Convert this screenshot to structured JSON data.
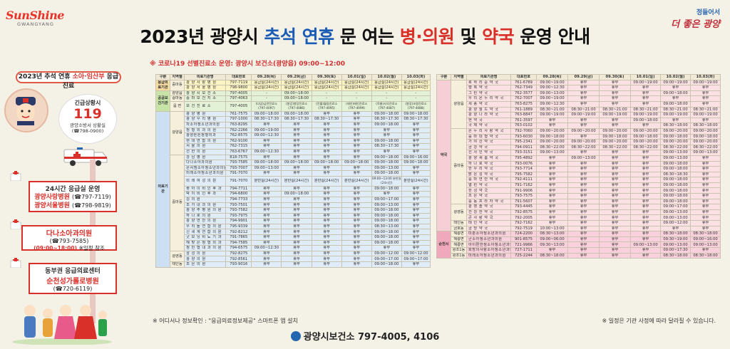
{
  "logo_left": {
    "line1": "SunShine",
    "line2": "GWANGYANG"
  },
  "logo_right": {
    "line1": "정들어서",
    "line2": "더 좋은 광양"
  },
  "title": {
    "part1": "2023년 광양시 ",
    "chuseok": "추석",
    "space1": " ",
    "yeonhyu": "연휴",
    "part2": " 문 여는 ",
    "hospital": "병·의원",
    "part3": " 및 ",
    "pharmacy": "약국",
    "part4": " 운영 안내"
  },
  "notice": "※ 코로나19 선별진료소 운영: 광양시 보건소(광양읍) 09:00~12:00",
  "left_panel": {
    "header_a": "2023년 추석 연휴 ",
    "header_b": "소아·임산부",
    "header_c": " 응급진료",
    "bubble": {
      "l1": "긴급상황시",
      "l2": "119",
      "l3": "광양소방서 상황실",
      "l4": "(☎798-0900)"
    },
    "box1": {
      "title": "24시간 응급실 운영",
      "h1": "광양사랑병원",
      "p1": "(☎797-7119)",
      "h2": "광양서울병원",
      "p2": "(☎798-9819)"
    },
    "box2": {
      "h": "다나소아과의원",
      "p": "(☎793-7585)",
      "hours": "(09:00~18:00)",
      "note": "※일정 참조"
    },
    "box3": {
      "t": "동부권 응급의료센터",
      "h": "순천성가롤로병원",
      "p": "(☎720-6119)"
    }
  },
  "table_hosp": {
    "headers": [
      "구분",
      "지역별",
      "의료기관명",
      "대표번호",
      "09.28(목)",
      "09.29(금)",
      "09.30(토)",
      "10.01(일)",
      "10.02(월)",
      "10.03(화)"
    ],
    "rows": [
      {
        "c": "응급의료기관",
        "r": "중마동",
        "n": "광 양 사 랑 병 원",
        "t": "797-7119",
        "d": [
          "응급실(24시간)",
          "응급실(24시간)",
          "응급실(24시간)",
          "응급실(24시간)",
          "응급실(24시간)",
          "응급실(24시간)"
        ],
        "cls": "y-row"
      },
      {
        "c": "",
        "r": "",
        "n": "광 양 서 울 병 원",
        "t": "798-9800",
        "d": [
          "응급실(24시간)",
          "응급실(24시간)",
          "응급실(24시간)",
          "응급실(24시간)",
          "응급실(24시간)",
          "응급실(24시간)"
        ],
        "cls": "y-row"
      },
      {
        "c": "공공보건기관",
        "r": "광양읍",
        "n": "광 양 시 보 건 소",
        "t": "797-4005",
        "d": [
          "-",
          "09:00~18:00",
          "-",
          "-",
          "-",
          "-"
        ],
        "cls": "g-row"
      },
      {
        "c": "",
        "r": "중마동",
        "n": "중 마 보 건 지 소",
        "t": "797-4063",
        "d": [
          "-",
          "09:00~18:00",
          "-",
          "-",
          "-",
          "-"
        ],
        "cls": "g-row"
      },
      {
        "c": "",
        "r": "읍 면",
        "n": "보 건 진 료 소",
        "t": "797-4005",
        "d": [
          "(다압)금전진료소 (797-4097)",
          "(봉강)봉당진료소 (797-4086)",
          "(진월)월길진료소 (797-4095)",
          "(태인)태인진료소 (797-4099)",
          "(옥룡)사곡진료소 (797-4087)",
          "(봉강)조령진료소 (797-4088)"
        ],
        "cls": "g-row"
      },
      {
        "c": "의료기관",
        "r": "광양읍",
        "n": "광 양 병 원",
        "t": "761-7575",
        "d": [
          "09:00~18:00",
          "09:00~18:00",
          "휴무",
          "휴무",
          "09:00~18:00",
          "09:00~18:00"
        ],
        "cls": "b-row"
      },
      {
        "c": "",
        "r": "",
        "n": "광 양 우 리 병 원",
        "t": "797-1000",
        "d": [
          "08:30~17:30",
          "08:30~17:30",
          "08:30~17:30",
          "휴무",
          "08:30~17:30",
          "08:30~17:30"
        ],
        "cls": "b-row"
      },
      {
        "c": "",
        "r": "",
        "n": "차소아청소년과의원",
        "t": "763-8295",
        "d": [
          "휴무",
          "휴무",
          "휴무",
          "휴무",
          "09:00~18:00",
          "휴무"
        ],
        "cls": "b-row"
      },
      {
        "c": "",
        "r": "",
        "n": "정 형 외 과 의 원",
        "t": "762-2266",
        "d": [
          "09:00~19:00",
          "휴무",
          "휴무",
          "휴무",
          "휴무",
          "휴무"
        ],
        "cls": "b-row"
      },
      {
        "c": "",
        "r": "",
        "n": "광양튼튼정형외과",
        "t": "762-8575",
        "d": [
          "09:00~12:30",
          "휴무",
          "휴무",
          "휴무",
          "휴무",
          "휴무"
        ],
        "cls": "b-row"
      },
      {
        "c": "",
        "r": "",
        "n": "현 대 연 합 의 원",
        "t": "762-9100",
        "d": [
          "휴무",
          "휴무",
          "휴무",
          "휴무",
          "09:00~18:00",
          "휴무"
        ],
        "cls": "b-row"
      },
      {
        "c": "",
        "r": "",
        "n": "서 울 의 원",
        "t": "762-7315",
        "d": [
          "휴무",
          "휴무",
          "휴무",
          "휴무",
          "08:30~17:30",
          "휴무"
        ],
        "cls": "b-row"
      },
      {
        "c": "",
        "r": "",
        "n": "선 한 의 원",
        "t": "763-6767",
        "d": [
          "09:00~12:30",
          "휴무",
          "휴무",
          "휴무",
          "휴무",
          "휴무"
        ],
        "cls": "b-row"
      },
      {
        "c": "",
        "r": "중마동",
        "n": "강 남 병 원",
        "t": "818-7575",
        "d": [
          "휴무",
          "휴무",
          "휴무",
          "휴무",
          "09:00~18:00",
          "09:00~16:00"
        ],
        "cls": "b-row"
      },
      {
        "c": "",
        "r": "",
        "n": "다나소아과의원",
        "t": "793-7585",
        "d": [
          "09:00~18:00",
          "09:00~18:00",
          "09:00~18:00",
          "09:00~18:00",
          "09:00~18:00",
          "09:00~18:00"
        ],
        "cls": "b-row"
      },
      {
        "c": "",
        "r": "",
        "n": "은서엠소아청소년과의원",
        "t": "793-7007",
        "d": [
          "09:00~13:00",
          "휴무",
          "휴무",
          "휴무",
          "09:00~13:00",
          "휴무"
        ],
        "cls": "b-row"
      },
      {
        "c": "",
        "r": "",
        "n": "미래소아청소년과의원",
        "t": "791-7070",
        "d": [
          "휴무",
          "휴무",
          "휴무",
          "휴무",
          "09:00~18:00",
          "휴무"
        ],
        "cls": "b-row"
      },
      {
        "c": "",
        "r": "",
        "n": "미 래 여 성 의 원",
        "t": "791-7070",
        "d": [
          "분만실(24시간)",
          "분만실(24시간)",
          "분만실(24시간)",
          "분만실(24시간)",
          "09:00~13:00 분만실(24시간)",
          "분만실(24시간)"
        ],
        "cls": "b-row"
      },
      {
        "c": "",
        "r": "",
        "n": "좋 아 이 비 인 후 과",
        "t": "794-7711",
        "d": [
          "휴무",
          "휴무",
          "휴무",
          "휴무",
          "09:00~18:00",
          "휴무"
        ],
        "cls": "b-row"
      },
      {
        "c": "",
        "r": "",
        "n": "박 이 비 인 후 과",
        "t": "794-6800",
        "d": [
          "휴무",
          "09:00~18:00",
          "휴무",
          "휴무",
          "휴무",
          "휴무"
        ],
        "cls": "b-row"
      },
      {
        "c": "",
        "r": "",
        "n": "김 의 원",
        "t": "794-7733",
        "d": [
          "휴무",
          "휴무",
          "휴무",
          "휴무",
          "09:00~17:00",
          "휴무"
        ],
        "cls": "b-row"
      },
      {
        "c": "",
        "r": "",
        "n": "조 가 내 과 의 원",
        "t": "793-7501",
        "d": [
          "휴무",
          "휴무",
          "휴무",
          "휴무",
          "09:00~13:00",
          "휴무"
        ],
        "cls": "b-row"
      },
      {
        "c": "",
        "r": "",
        "n": "광 양 주 병 원 의 원",
        "t": "793-7582",
        "d": [
          "휴무",
          "휴무",
          "휴무",
          "휴무",
          "09:00~18:00",
          "휴무"
        ],
        "cls": "b-row"
      },
      {
        "c": "",
        "r": "",
        "n": "하 나 로 의 원",
        "t": "793-7975",
        "d": [
          "휴무",
          "휴무",
          "휴무",
          "휴무",
          "09:00~18:00",
          "휴무"
        ],
        "cls": "b-row"
      },
      {
        "c": "",
        "r": "",
        "n": "광 양 연 안 의 원",
        "t": "794-9901",
        "d": [
          "휴무",
          "휴무",
          "휴무",
          "휴무",
          "09:00~18:00",
          "휴무"
        ],
        "cls": "b-row"
      },
      {
        "c": "",
        "r": "",
        "n": "우 리 들 연 합 의 원",
        "t": "795-9339",
        "d": [
          "휴무",
          "휴무",
          "휴무",
          "휴무",
          "08:30~13:00",
          "휴무"
        ],
        "cls": "b-row"
      },
      {
        "c": "",
        "r": "",
        "n": "신 세 계 연 합 의 원",
        "t": "792-8212",
        "d": [
          "휴무",
          "휴무",
          "휴무",
          "휴무",
          "09:00~18:00",
          "휴무"
        ],
        "cls": "b-row"
      },
      {
        "c": "",
        "r": "",
        "n": "굿 모 닝 비 뇨 기 과",
        "t": "791-7865",
        "d": [
          "휴무",
          "휴무",
          "휴무",
          "휴무",
          "09:00~18:00",
          "휴무"
        ],
        "cls": "b-row"
      },
      {
        "c": "",
        "r": "",
        "n": "해 맞 은 정 형 외 과",
        "t": "794-7585",
        "d": [
          "휴무",
          "휴무",
          "휴무",
          "휴무",
          "09:00~18:00",
          "휴무"
        ],
        "cls": "b-row"
      },
      {
        "c": "",
        "r": "",
        "n": "정 민 형 내 과 의 원",
        "t": "794-6575",
        "d": [
          "09:00~12:30",
          "휴무",
          "휴무",
          "휴무",
          "휴무",
          "휴무"
        ],
        "cls": "b-row"
      },
      {
        "c": "",
        "r": "광영동",
        "n": "삼 성 의 원",
        "t": "792-8275",
        "d": [
          "휴무",
          "휴무",
          "휴무",
          "휴무",
          "09:00~12:00",
          "09:00~12:00"
        ],
        "cls": "b-row"
      },
      {
        "c": "",
        "r": "",
        "n": "광 양 의 원",
        "t": "792-8561",
        "d": [
          "휴무",
          "휴무",
          "휴무",
          "휴무",
          "09:00~17:00",
          "09:00~17:00"
        ],
        "cls": "b-row"
      },
      {
        "c": "",
        "r": "태인동",
        "n": "조 은 의 원",
        "t": "793-9016",
        "d": [
          "휴무",
          "휴무",
          "휴무",
          "휴무",
          "09:00~18:00",
          "휴무"
        ],
        "cls": "b-row"
      }
    ]
  },
  "table_pharm": {
    "headers": [
      "구분",
      "지역별",
      "의료기관명",
      "대표번호",
      "09.28(목)",
      "09.29(금)",
      "09.30(토)",
      "10.01(일)",
      "10.02(월)",
      "10.03(화)"
    ],
    "rows": [
      {
        "c": "약국",
        "r": "광양읍",
        "n": "로 하 리 쥰 약 국",
        "t": "761-6789",
        "d": [
          "09:00~19:00",
          "휴무",
          "휴무",
          "09:00~19:00",
          "09:00~19:00",
          "09:00~19:00"
        ],
        "cls": "p-row"
      },
      {
        "c": "",
        "r": "",
        "n": "행 복 약 국",
        "t": "762-7349",
        "d": [
          "09:00~12:30",
          "휴무",
          "휴무",
          "휴무",
          "휴무",
          "휴무"
        ],
        "cls": "p-row"
      },
      {
        "c": "",
        "r": "",
        "n": "그 린 약 국",
        "t": "762-3577",
        "d": [
          "09:00~13:00",
          "휴무",
          "휴무",
          "휴무",
          "09:00~18:00",
          "휴무"
        ],
        "cls": "p-row"
      },
      {
        "c": "",
        "r": "",
        "n": "우 리 온 누 리 약 국",
        "t": "762-7007",
        "d": [
          "09:00~19:00",
          "휴무",
          "휴무",
          "휴무",
          "휴무",
          "휴무"
        ],
        "cls": "p-row"
      },
      {
        "c": "",
        "r": "",
        "n": "세 종 약 국",
        "t": "763-8275",
        "d": [
          "09:00~12:30",
          "휴무",
          "휴무",
          "휴무",
          "09:00~18:00",
          "휴무"
        ],
        "cls": "p-row"
      },
      {
        "c": "",
        "r": "",
        "n": "광 양 월 드 약 국",
        "t": "761-1889",
        "d": [
          "08:30~21:00",
          "08:30~21:00",
          "08:30~21:00",
          "08:30~21:00",
          "08:30~21:00",
          "08:30~21:00"
        ],
        "cls": "p-row"
      },
      {
        "c": "",
        "r": "",
        "n": "광 양 나 라 약 국",
        "t": "763-8847",
        "d": [
          "09:00~19:00",
          "09:00~19:00",
          "09:00~19:00",
          "09:00~19:00",
          "09:00~19:00",
          "09:00~19:00"
        ],
        "cls": "p-row"
      },
      {
        "c": "",
        "r": "",
        "n": "현 약 국",
        "t": "761-3597",
        "d": [
          "휴무",
          "휴무",
          "휴무",
          "09:00~18:00",
          "휴무",
          "휴무"
        ],
        "cls": "p-row"
      },
      {
        "c": "",
        "r": "",
        "n": "국 제 약 국",
        "t": "763-0102",
        "d": [
          "휴무",
          "휴무",
          "휴무",
          "휴무",
          "08:30~18:00",
          "08:30~18:00"
        ],
        "cls": "p-row"
      },
      {
        "c": "",
        "r": "중마동",
        "n": "온 누 리 사 랑 약 국",
        "t": "792-7060",
        "d": [
          "09:00~20:00",
          "09:00~20:00",
          "09:00~20:00",
          "09:00~20:00",
          "09:00~20:00",
          "09:00~20:00"
        ],
        "cls": "p-row"
      },
      {
        "c": "",
        "r": "",
        "n": "중 마 대 형 약 국",
        "t": "793-6030",
        "d": [
          "09:00~18:00",
          "휴무",
          "09:00~18:00",
          "09:00~18:00",
          "09:00~18:00",
          "09:00~18:00"
        ],
        "cls": "p-row"
      },
      {
        "c": "",
        "r": "",
        "n": "가 야 산 약 국",
        "t": "795-2341",
        "d": [
          "09:00~20:00",
          "09:00~20:00",
          "09:00~20:00",
          "09:00~20:00",
          "09:00~20:00",
          "09:00~20:00"
        ],
        "cls": "p-row"
      },
      {
        "c": "",
        "r": "",
        "n": "금 강 약 국",
        "t": "794-0911",
        "d": [
          "08:30~22:00",
          "08:30~22:00",
          "08:30~22:00",
          "08:30~22:00",
          "08:30~22:00",
          "08:30~22:00"
        ],
        "cls": "p-row"
      },
      {
        "c": "",
        "r": "",
        "n": "선 사 인 약 국",
        "t": "793-3151",
        "d": [
          "09:00~13:00",
          "휴무",
          "휴무",
          "휴무",
          "09:00~13:00",
          "09:00~13:00"
        ],
        "cls": "p-row"
      },
      {
        "c": "",
        "r": "",
        "n": "광 양 새 롬 약 국",
        "t": "795-4892",
        "d": [
          "휴무",
          "09:00~13:00",
          "휴무",
          "휴무",
          "09:00~13:00",
          "휴무"
        ],
        "cls": "p-row"
      },
      {
        "c": "",
        "r": "",
        "n": "하 나 로 약 국",
        "t": "793-0076",
        "d": [
          "휴무",
          "휴무",
          "휴무",
          "휴무",
          "09:00~18:00",
          "휴무"
        ],
        "cls": "p-row"
      },
      {
        "c": "",
        "r": "",
        "n": "한 우 리 약 국",
        "t": "793-7714",
        "d": [
          "휴무",
          "휴무",
          "휴무",
          "휴무",
          "09:00~18:00",
          "휴무"
        ],
        "cls": "p-row"
      },
      {
        "c": "",
        "r": "",
        "n": "밝 은 성 약 국",
        "t": "795-7582",
        "d": [
          "휴무",
          "휴무",
          "휴무",
          "휴무",
          "08:30~18:30",
          "휴무"
        ],
        "cls": "p-row"
      },
      {
        "c": "",
        "r": "",
        "n": "중 마 연 안 약 국",
        "t": "792-4111",
        "d": [
          "휴무",
          "휴무",
          "휴무",
          "휴무",
          "09:00~18:00",
          "휴무"
        ],
        "cls": "p-row"
      },
      {
        "c": "",
        "r": "",
        "n": "열 린 약 국",
        "t": "791-7162",
        "d": [
          "휴무",
          "휴무",
          "휴무",
          "휴무",
          "09:00~18:00",
          "휴무"
        ],
        "cls": "p-row"
      },
      {
        "c": "",
        "r": "",
        "n": "한 성 약 국",
        "t": "791-9906",
        "d": [
          "휴무",
          "휴무",
          "휴무",
          "휴무",
          "09:00~18:00",
          "휴무"
        ],
        "cls": "p-row"
      },
      {
        "c": "",
        "r": "",
        "n": "조 은 약 국",
        "t": "793-7575",
        "d": [
          "휴무",
          "휴무",
          "휴무",
          "휴무",
          "09:00~18:00",
          "휴무"
        ],
        "cls": "p-row"
      },
      {
        "c": "",
        "r": "",
        "n": "중 동 프 라 자 약 국",
        "t": "791-5607",
        "d": [
          "휴무",
          "휴무",
          "휴무",
          "휴무",
          "09:00~18:00",
          "휴무"
        ],
        "cls": "p-row"
      },
      {
        "c": "",
        "r": "광영동",
        "n": "광 영 솔 약 국",
        "t": "793-4445",
        "d": [
          "휴무",
          "휴무",
          "휴무",
          "휴무",
          "09:00~17:00",
          "휴무"
        ],
        "cls": "p-row"
      },
      {
        "c": "",
        "r": "",
        "n": "건 강 한 약 국",
        "t": "792-8575",
        "d": [
          "휴무",
          "휴무",
          "휴무",
          "휴무",
          "09:00~13:00",
          "휴무"
        ],
        "cls": "p-row"
      },
      {
        "c": "",
        "r": "",
        "n": "큰 사 랑 약 국",
        "t": "792-2005",
        "d": [
          "휴무",
          "휴무",
          "휴무",
          "휴무",
          "09:00~13:00",
          "휴무"
        ],
        "cls": "p-row"
      },
      {
        "c": "",
        "r": "태인동",
        "n": "태 인 약 국",
        "t": "792-7162",
        "d": [
          "휴무",
          "휴무",
          "휴무",
          "휴무",
          "09:00~12:00",
          "휴무"
        ],
        "cls": "p-row"
      },
      {
        "c": "",
        "r": "금호동",
        "n": "금 당 약 국",
        "t": "792-7519",
        "d": [
          "10:00~13:00",
          "휴무",
          "휴무",
          "휴무",
          "휴무",
          "휴무"
        ],
        "cls": "p-row"
      },
      {
        "c": "순천시",
        "r": "해룡면",
        "n": "미춘소아청소년과의원",
        "t": "724-2200",
        "d": [
          "08:30~13:00",
          "휴무",
          "휴무",
          "휴무",
          "08:30~18:00",
          "08:30~18:00"
        ],
        "cls": "k-row"
      },
      {
        "c": "",
        "r": "해룡면",
        "n": "군소아청소년과의원",
        "t": "901-8575",
        "d": [
          "09:00~06:00",
          "휴무",
          "휴무",
          "휴무",
          "09:30~19:00",
          "09:00~16:00"
        ],
        "cls": "k-row"
      },
      {
        "c": "",
        "r": "해룡면",
        "n": "아이편한정소아청소년과의원",
        "t": "721-9966",
        "d": [
          "09:30~13:00",
          "휴무",
          "휴무",
          "09:00~13:00",
          "09:00~13:00",
          "09:00~13:00"
        ],
        "cls": "k-row"
      },
      {
        "c": "",
        "r": "왕조1동",
        "n": "희망의사랑소아청소년과의원",
        "t": "727-1711",
        "d": [
          "휴무",
          "휴무",
          "휴무",
          "휴무",
          "09:00~17:30",
          "휴무"
        ],
        "cls": "k-row"
      },
      {
        "c": "",
        "r": "왕조1동",
        "n": "미래소아청소년과의원",
        "t": "725-2244",
        "d": [
          "08:30~18:00",
          "휴무",
          "휴무",
          "휴무",
          "08:30~18:00",
          "08:30~18:00"
        ],
        "cls": "k-row"
      }
    ]
  },
  "footer": {
    "left": "※ 어디서나 정보확인 : \"응급의료정보제공\" 스마트폰 앱 설치",
    "right": "※ 일정은 기관 사정에 따라 달라질 수 있습니다.",
    "contact": "광양시보건소 797-4005, 4106"
  }
}
